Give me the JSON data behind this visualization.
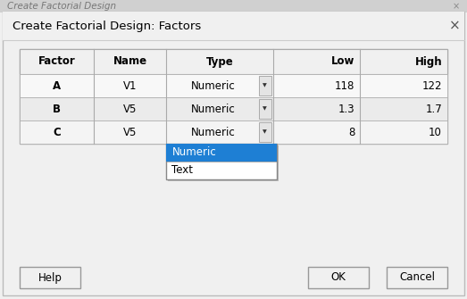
{
  "title_bar_text": "Create Factorial Design: Factors",
  "top_strip_text": "Create Factorial Design",
  "bg_dialog": "#f0f0f0",
  "bg_top_strip": "#d0d0d0",
  "table_headers": [
    "Factor",
    "Name",
    "Type",
    "Low",
    "High"
  ],
  "rows": [
    {
      "factor": "A",
      "name": "V1",
      "type": "Numeric",
      "low": "118",
      "high": "122"
    },
    {
      "factor": "B",
      "name": "V5",
      "type": "Numeric",
      "low": "1.3",
      "high": "1.7"
    },
    {
      "factor": "C",
      "name": "V5",
      "type": "Numeric",
      "low": "8",
      "high": "10"
    }
  ],
  "dropdown_items": [
    "Numeric",
    "Text"
  ],
  "dropdown_selected_bg": "#1e7fd4",
  "dropdown_selected_fg": "#ffffff",
  "dropdown_bg": "#ffffff",
  "dropdown_border": "#888888",
  "button_bg": "#f0f0f0",
  "button_border": "#999999",
  "table_border": "#aaaaaa",
  "table_header_bg": "#f0f0f0",
  "row_bg_odd": "#f8f8f8",
  "row_bg_even": "#ebebeb",
  "cell_text_color": "#000000",
  "close_x_color": "#555555",
  "title_font_size": 9.5,
  "cell_font_size": 8.5,
  "button_font_size": 8.5,
  "strip_font_size": 7.5,
  "fig_w": 5.23,
  "fig_h": 3.35,
  "dpi": 100
}
